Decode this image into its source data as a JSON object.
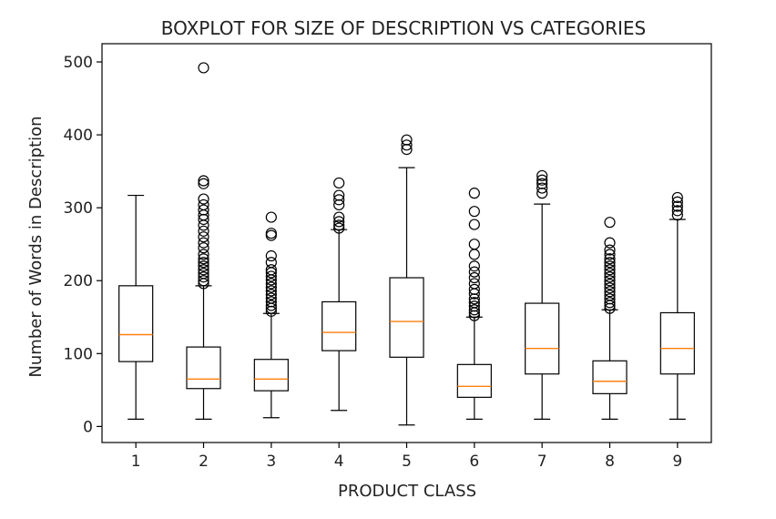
{
  "chart_data": {
    "type": "boxplot",
    "title": "BOXPLOT FOR SIZE OF DESCRIPTION VS CATEGORIES",
    "xlabel": "PRODUCT CLASS",
    "ylabel": "Number of Words in Description",
    "ylim": [
      -22,
      525
    ],
    "yticks": [
      0,
      100,
      200,
      300,
      400,
      500
    ],
    "categories": [
      "1",
      "2",
      "3",
      "4",
      "5",
      "6",
      "7",
      "8",
      "9"
    ],
    "boxes": [
      {
        "category": "1",
        "whisker_low": 10,
        "q1": 89,
        "median": 126,
        "q3": 193,
        "whisker_high": 317,
        "outliers": []
      },
      {
        "category": "2",
        "whisker_low": 10,
        "q1": 52,
        "median": 65,
        "q3": 109,
        "whisker_high": 193,
        "outliers": [
          196,
          200,
          205,
          210,
          215,
          220,
          225,
          230,
          236,
          245,
          252,
          260,
          268,
          276,
          284,
          290,
          297,
          304,
          312,
          333,
          337,
          492
        ]
      },
      {
        "category": "3",
        "whisker_low": 12,
        "q1": 49,
        "median": 65,
        "q3": 92,
        "whisker_high": 155,
        "outliers": [
          158,
          162,
          166,
          171,
          176,
          181,
          186,
          191,
          196,
          201,
          206,
          211,
          215,
          225,
          234,
          262,
          265,
          287
        ]
      },
      {
        "category": "4",
        "whisker_low": 22,
        "q1": 104,
        "median": 129,
        "q3": 171,
        "whisker_high": 270,
        "outliers": [
          272,
          276,
          281,
          287,
          304,
          311,
          317,
          334
        ]
      },
      {
        "category": "5",
        "whisker_low": 2,
        "q1": 95,
        "median": 144,
        "q3": 204,
        "whisker_high": 355,
        "outliers": [
          380,
          386,
          393
        ]
      },
      {
        "category": "6",
        "whisker_low": 10,
        "q1": 40,
        "median": 55,
        "q3": 85,
        "whisker_high": 150,
        "outliers": [
          152,
          156,
          160,
          165,
          170,
          175,
          182,
          188,
          196,
          204,
          212,
          220,
          236,
          250,
          277,
          295,
          320
        ]
      },
      {
        "category": "7",
        "whisker_low": 10,
        "q1": 72,
        "median": 107,
        "q3": 169,
        "whisker_high": 305,
        "outliers": [
          320,
          327,
          333,
          338,
          344
        ]
      },
      {
        "category": "8",
        "whisker_low": 10,
        "q1": 45,
        "median": 62,
        "q3": 90,
        "whisker_high": 160,
        "outliers": [
          162,
          166,
          170,
          175,
          180,
          185,
          190,
          195,
          200,
          205,
          210,
          215,
          220,
          225,
          230,
          236,
          242,
          252,
          280
        ]
      },
      {
        "category": "9",
        "whisker_low": 10,
        "q1": 72,
        "median": 107,
        "q3": 156,
        "whisker_high": 284,
        "outliers": [
          290,
          296,
          302,
          308,
          314
        ]
      }
    ],
    "grid": false,
    "colors": {
      "box": "#000000",
      "median": "#ff7f0e",
      "outlier": "#000000",
      "background": "#ffffff"
    }
  }
}
